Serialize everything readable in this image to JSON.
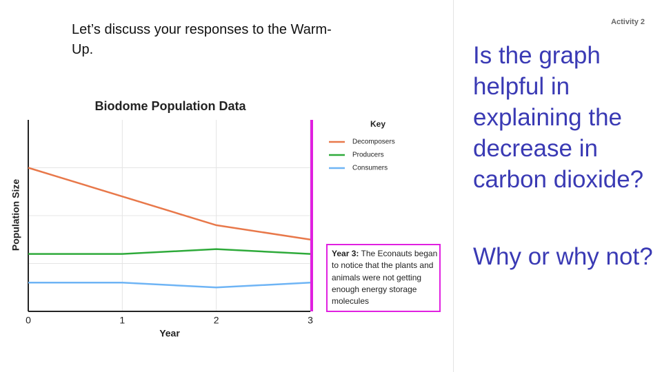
{
  "header": {
    "text": "Let’s discuss your responses to the Warm-Up.",
    "activity": "Activity 2"
  },
  "question": {
    "main": "Is the graph helpful in explaining the decrease in carbon dioxide?",
    "follow_up": "Why or why not?"
  },
  "chart_data": {
    "type": "line",
    "title": "Biodome Population Data",
    "x_label": "Year",
    "y_label": "Population Size",
    "x": [
      0,
      1,
      2,
      3
    ],
    "xlim": [
      0,
      3
    ],
    "xticks": [
      0,
      1,
      2,
      3
    ],
    "ylim": [
      0,
      4
    ],
    "legend_title": "Key",
    "series": [
      {
        "name": "Decomposers",
        "color": "#e8784a",
        "values": [
          3,
          2.4,
          1.8,
          1.5
        ]
      },
      {
        "name": "Producers",
        "color": "#2eaa3a",
        "values": [
          1.2,
          1.2,
          1.3,
          1.2
        ]
      },
      {
        "name": "Consumers",
        "color": "#6eb4f5",
        "values": [
          0.6,
          0.6,
          0.5,
          0.6
        ]
      }
    ],
    "annotation": {
      "x": 3,
      "color": "#e020e0",
      "label": "Year 3:",
      "text": "The Econauts began to notice that the plants and animals were not getting enough energy storage molecules"
    }
  }
}
